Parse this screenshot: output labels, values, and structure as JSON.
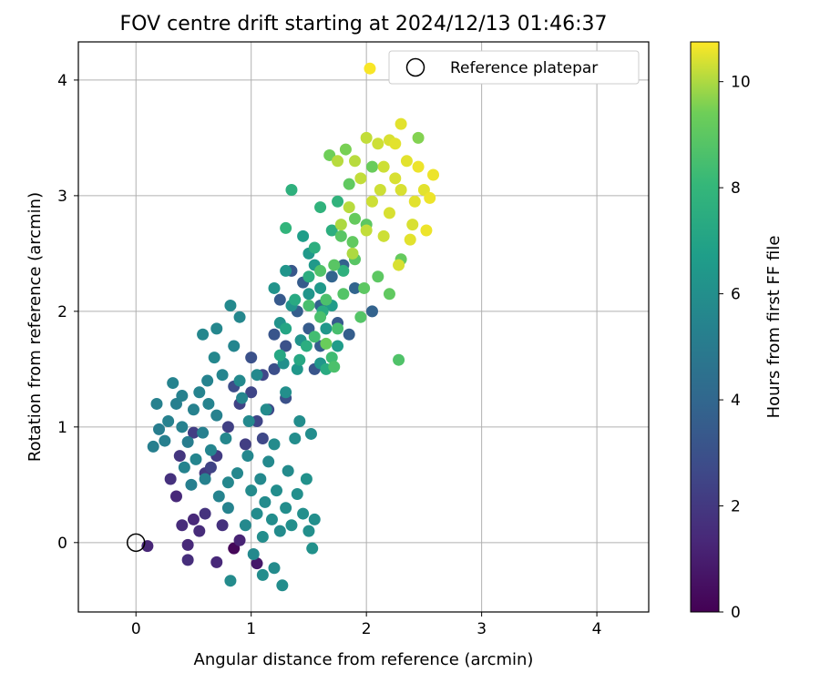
{
  "chart_data": {
    "type": "scatter",
    "title": "FOV centre drift starting at 2024/12/13 01:46:37",
    "xlabel": "Angular distance from reference (arcmin)",
    "ylabel": "Rotation from reference (arcmin)",
    "xlim": [
      -0.5,
      4.45
    ],
    "ylim": [
      -0.6,
      4.33
    ],
    "xticks": [
      0,
      1,
      2,
      3,
      4
    ],
    "yticks": [
      0,
      1,
      2,
      3,
      4
    ],
    "grid": true,
    "legend": {
      "placement": "top-right",
      "entries": [
        "Reference platepar"
      ]
    },
    "reference_point": {
      "x": 0,
      "y": 0,
      "label": "Reference platepar"
    },
    "colorbar": {
      "label": "Hours from first FF file",
      "colormap": "viridis",
      "range": [
        0,
        10.75
      ],
      "ticks": [
        0,
        2,
        4,
        6,
        8,
        10
      ]
    },
    "points": [
      {
        "x": 0.1,
        "y": -0.03,
        "c": 1.3
      },
      {
        "x": 0.35,
        "y": 0.4,
        "c": 1.4
      },
      {
        "x": 0.4,
        "y": 0.15,
        "c": 1.5
      },
      {
        "x": 0.45,
        "y": -0.15,
        "c": 1.6
      },
      {
        "x": 0.5,
        "y": 0.2,
        "c": 1.4
      },
      {
        "x": 0.55,
        "y": 0.1,
        "c": 1.5
      },
      {
        "x": 0.6,
        "y": 0.25,
        "c": 1.8
      },
      {
        "x": 0.7,
        "y": -0.17,
        "c": 1.4
      },
      {
        "x": 0.75,
        "y": 0.15,
        "c": 1.7
      },
      {
        "x": 0.85,
        "y": -0.05,
        "c": 0.2
      },
      {
        "x": 0.9,
        "y": 0.02,
        "c": 1.2
      },
      {
        "x": 1.05,
        "y": -0.18,
        "c": 0.8
      },
      {
        "x": 0.45,
        "y": -0.02,
        "c": 1.4
      },
      {
        "x": 0.3,
        "y": 0.55,
        "c": 1.7
      },
      {
        "x": 0.6,
        "y": 0.6,
        "c": 2.0
      },
      {
        "x": 0.38,
        "y": 0.75,
        "c": 1.9
      },
      {
        "x": 0.5,
        "y": 0.95,
        "c": 2.2
      },
      {
        "x": 0.8,
        "y": 1.0,
        "c": 2.3
      },
      {
        "x": 0.9,
        "y": 1.2,
        "c": 2.4
      },
      {
        "x": 1.0,
        "y": 1.3,
        "c": 2.5
      },
      {
        "x": 1.1,
        "y": 1.45,
        "c": 2.6
      },
      {
        "x": 0.95,
        "y": 0.85,
        "c": 2.2
      },
      {
        "x": 1.05,
        "y": 1.05,
        "c": 2.5
      },
      {
        "x": 1.15,
        "y": 1.15,
        "c": 2.7
      },
      {
        "x": 0.7,
        "y": 0.75,
        "c": 2.1
      },
      {
        "x": 0.85,
        "y": 1.35,
        "c": 2.8
      },
      {
        "x": 1.2,
        "y": 1.5,
        "c": 2.9
      },
      {
        "x": 1.3,
        "y": 1.7,
        "c": 3.0
      },
      {
        "x": 1.25,
        "y": 2.1,
        "c": 3.4
      },
      {
        "x": 1.4,
        "y": 2.0,
        "c": 3.6
      },
      {
        "x": 1.5,
        "y": 1.85,
        "c": 3.5
      },
      {
        "x": 1.6,
        "y": 2.05,
        "c": 3.8
      },
      {
        "x": 1.7,
        "y": 2.3,
        "c": 3.9
      },
      {
        "x": 1.8,
        "y": 2.4,
        "c": 3.7
      },
      {
        "x": 1.85,
        "y": 1.8,
        "c": 3.6
      },
      {
        "x": 2.05,
        "y": 2.0,
        "c": 3.8
      },
      {
        "x": 1.35,
        "y": 2.35,
        "c": 3.3
      },
      {
        "x": 1.45,
        "y": 2.25,
        "c": 3.5
      },
      {
        "x": 1.6,
        "y": 1.7,
        "c": 3.6
      },
      {
        "x": 1.9,
        "y": 2.2,
        "c": 3.9
      },
      {
        "x": 1.2,
        "y": 1.8,
        "c": 3.2
      },
      {
        "x": 1.0,
        "y": 1.6,
        "c": 3.0
      },
      {
        "x": 0.65,
        "y": 0.65,
        "c": 2.4
      },
      {
        "x": 1.1,
        "y": 0.9,
        "c": 2.6
      },
      {
        "x": 1.3,
        "y": 1.25,
        "c": 3.0
      },
      {
        "x": 1.55,
        "y": 1.5,
        "c": 3.2
      },
      {
        "x": 1.75,
        "y": 1.9,
        "c": 3.4
      },
      {
        "x": 0.15,
        "y": 0.83,
        "c": 5.2
      },
      {
        "x": 0.18,
        "y": 1.2,
        "c": 5.3
      },
      {
        "x": 0.2,
        "y": 0.98,
        "c": 5.1
      },
      {
        "x": 0.25,
        "y": 0.88,
        "c": 5.2
      },
      {
        "x": 0.28,
        "y": 1.05,
        "c": 5.3
      },
      {
        "x": 0.32,
        "y": 1.38,
        "c": 5.4
      },
      {
        "x": 0.35,
        "y": 1.2,
        "c": 5.2
      },
      {
        "x": 0.4,
        "y": 1.0,
        "c": 5.3
      },
      {
        "x": 0.42,
        "y": 0.65,
        "c": 5.4
      },
      {
        "x": 0.45,
        "y": 0.87,
        "c": 5.1
      },
      {
        "x": 0.48,
        "y": 0.5,
        "c": 5.2
      },
      {
        "x": 0.5,
        "y": 1.15,
        "c": 5.3
      },
      {
        "x": 0.52,
        "y": 0.72,
        "c": 5.5
      },
      {
        "x": 0.55,
        "y": 1.3,
        "c": 5.4
      },
      {
        "x": 0.58,
        "y": 0.95,
        "c": 5.2
      },
      {
        "x": 0.6,
        "y": 0.55,
        "c": 5.3
      },
      {
        "x": 0.62,
        "y": 1.4,
        "c": 5.4
      },
      {
        "x": 0.65,
        "y": 0.8,
        "c": 5.5
      },
      {
        "x": 0.68,
        "y": 1.6,
        "c": 5.6
      },
      {
        "x": 0.7,
        "y": 1.1,
        "c": 5.3
      },
      {
        "x": 0.72,
        "y": 0.4,
        "c": 5.4
      },
      {
        "x": 0.75,
        "y": 1.45,
        "c": 5.5
      },
      {
        "x": 0.78,
        "y": 0.9,
        "c": 5.6
      },
      {
        "x": 0.8,
        "y": 0.3,
        "c": 5.4
      },
      {
        "x": 0.82,
        "y": 2.05,
        "c": 5.7
      },
      {
        "x": 0.85,
        "y": 1.7,
        "c": 5.5
      },
      {
        "x": 0.88,
        "y": 0.6,
        "c": 5.6
      },
      {
        "x": 0.9,
        "y": 1.95,
        "c": 5.6
      },
      {
        "x": 0.92,
        "y": 1.25,
        "c": 5.5
      },
      {
        "x": 0.95,
        "y": 0.15,
        "c": 5.7
      },
      {
        "x": 0.97,
        "y": 0.75,
        "c": 5.6
      },
      {
        "x": 1.0,
        "y": 0.45,
        "c": 5.8
      },
      {
        "x": 1.02,
        "y": -0.1,
        "c": 5.7
      },
      {
        "x": 1.05,
        "y": 0.25,
        "c": 5.8
      },
      {
        "x": 1.08,
        "y": 0.55,
        "c": 5.7
      },
      {
        "x": 1.1,
        "y": 0.05,
        "c": 5.9
      },
      {
        "x": 1.12,
        "y": 0.35,
        "c": 5.8
      },
      {
        "x": 1.15,
        "y": 0.7,
        "c": 5.7
      },
      {
        "x": 1.18,
        "y": 0.2,
        "c": 5.9
      },
      {
        "x": 1.2,
        "y": -0.22,
        "c": 5.8
      },
      {
        "x": 1.22,
        "y": 0.45,
        "c": 5.9
      },
      {
        "x": 1.25,
        "y": 0.1,
        "c": 5.8
      },
      {
        "x": 1.27,
        "y": -0.37,
        "c": 5.9
      },
      {
        "x": 1.3,
        "y": 0.3,
        "c": 5.9
      },
      {
        "x": 1.32,
        "y": 0.62,
        "c": 5.8
      },
      {
        "x": 1.35,
        "y": 0.15,
        "c": 6.0
      },
      {
        "x": 1.38,
        "y": 0.9,
        "c": 5.9
      },
      {
        "x": 1.4,
        "y": 0.42,
        "c": 6.0
      },
      {
        "x": 1.42,
        "y": 1.05,
        "c": 5.9
      },
      {
        "x": 1.45,
        "y": 0.25,
        "c": 6.0
      },
      {
        "x": 1.48,
        "y": 0.55,
        "c": 6.1
      },
      {
        "x": 1.5,
        "y": 0.1,
        "c": 6.0
      },
      {
        "x": 1.53,
        "y": -0.05,
        "c": 6.1
      },
      {
        "x": 1.55,
        "y": 0.2,
        "c": 6.0
      },
      {
        "x": 1.52,
        "y": 0.94,
        "c": 5.9
      },
      {
        "x": 0.82,
        "y": -0.33,
        "c": 5.8
      },
      {
        "x": 1.1,
        "y": -0.28,
        "c": 5.9
      },
      {
        "x": 1.13,
        "y": 1.15,
        "c": 5.8
      },
      {
        "x": 1.3,
        "y": 1.3,
        "c": 6.0
      },
      {
        "x": 1.28,
        "y": 1.55,
        "c": 6.0
      },
      {
        "x": 1.05,
        "y": 1.45,
        "c": 5.7
      },
      {
        "x": 0.7,
        "y": 1.85,
        "c": 5.6
      },
      {
        "x": 0.58,
        "y": 1.8,
        "c": 5.6
      },
      {
        "x": 0.9,
        "y": 1.4,
        "c": 5.7
      },
      {
        "x": 1.2,
        "y": 0.85,
        "c": 5.8
      },
      {
        "x": 0.98,
        "y": 1.05,
        "c": 5.7
      },
      {
        "x": 0.4,
        "y": 1.27,
        "c": 5.3
      },
      {
        "x": 0.63,
        "y": 1.2,
        "c": 5.4
      },
      {
        "x": 0.8,
        "y": 0.52,
        "c": 5.6
      },
      {
        "x": 1.43,
        "y": 1.75,
        "c": 6.2
      },
      {
        "x": 1.35,
        "y": 2.05,
        "c": 6.2
      },
      {
        "x": 1.6,
        "y": 1.55,
        "c": 6.3
      },
      {
        "x": 1.25,
        "y": 1.9,
        "c": 6.2
      },
      {
        "x": 1.5,
        "y": 2.15,
        "c": 6.3
      },
      {
        "x": 1.65,
        "y": 1.85,
        "c": 6.4
      },
      {
        "x": 1.3,
        "y": 2.35,
        "c": 6.3
      },
      {
        "x": 1.55,
        "y": 2.4,
        "c": 6.5
      },
      {
        "x": 1.7,
        "y": 2.05,
        "c": 6.6
      },
      {
        "x": 1.4,
        "y": 1.5,
        "c": 6.4
      },
      {
        "x": 1.75,
        "y": 1.7,
        "c": 6.6
      },
      {
        "x": 1.5,
        "y": 2.5,
        "c": 6.5
      },
      {
        "x": 1.2,
        "y": 2.2,
        "c": 6.2
      },
      {
        "x": 1.45,
        "y": 2.65,
        "c": 6.7
      },
      {
        "x": 1.6,
        "y": 2.2,
        "c": 6.5
      },
      {
        "x": 1.42,
        "y": 1.58,
        "c": 7.2
      },
      {
        "x": 1.65,
        "y": 1.5,
        "c": 7.4
      },
      {
        "x": 1.3,
        "y": 1.85,
        "c": 7.1
      },
      {
        "x": 1.5,
        "y": 2.3,
        "c": 7.5
      },
      {
        "x": 1.7,
        "y": 2.7,
        "c": 7.6
      },
      {
        "x": 1.38,
        "y": 2.1,
        "c": 7.3
      },
      {
        "x": 1.55,
        "y": 2.55,
        "c": 7.6
      },
      {
        "x": 1.75,
        "y": 2.95,
        "c": 7.8
      },
      {
        "x": 1.35,
        "y": 3.05,
        "c": 7.7
      },
      {
        "x": 1.62,
        "y": 2.0,
        "c": 7.4
      },
      {
        "x": 1.8,
        "y": 2.35,
        "c": 7.7
      },
      {
        "x": 1.3,
        "y": 2.72,
        "c": 7.9
      },
      {
        "x": 1.48,
        "y": 1.7,
        "c": 7.5
      },
      {
        "x": 1.25,
        "y": 1.62,
        "c": 7.2
      },
      {
        "x": 1.6,
        "y": 2.9,
        "c": 7.8
      },
      {
        "x": 1.55,
        "y": 1.78,
        "c": 8.4
      },
      {
        "x": 1.65,
        "y": 2.1,
        "c": 8.6
      },
      {
        "x": 1.75,
        "y": 1.85,
        "c": 8.5
      },
      {
        "x": 1.8,
        "y": 2.15,
        "c": 8.8
      },
      {
        "x": 1.9,
        "y": 2.45,
        "c": 8.9
      },
      {
        "x": 1.7,
        "y": 1.6,
        "c": 8.3
      },
      {
        "x": 1.6,
        "y": 2.35,
        "c": 8.7
      },
      {
        "x": 2.0,
        "y": 2.75,
        "c": 9.0
      },
      {
        "x": 1.85,
        "y": 3.1,
        "c": 9.1
      },
      {
        "x": 1.95,
        "y": 1.95,
        "c": 8.8
      },
      {
        "x": 1.72,
        "y": 1.52,
        "c": 8.6
      },
      {
        "x": 1.5,
        "y": 2.05,
        "c": 8.5
      },
      {
        "x": 2.1,
        "y": 2.3,
        "c": 9.0
      },
      {
        "x": 1.78,
        "y": 2.65,
        "c": 8.9
      },
      {
        "x": 2.28,
        "y": 1.58,
        "c": 8.7
      },
      {
        "x": 1.9,
        "y": 2.8,
        "c": 9.2
      },
      {
        "x": 2.05,
        "y": 3.25,
        "c": 9.3
      },
      {
        "x": 1.98,
        "y": 2.2,
        "c": 9.0
      },
      {
        "x": 2.2,
        "y": 2.15,
        "c": 9.1
      },
      {
        "x": 1.68,
        "y": 3.35,
        "c": 9.4
      },
      {
        "x": 1.82,
        "y": 3.4,
        "c": 9.5
      },
      {
        "x": 1.6,
        "y": 1.95,
        "c": 8.6
      },
      {
        "x": 1.72,
        "y": 2.4,
        "c": 8.9
      },
      {
        "x": 1.88,
        "y": 2.6,
        "c": 9.1
      },
      {
        "x": 1.65,
        "y": 1.72,
        "c": 9.3
      },
      {
        "x": 2.3,
        "y": 2.45,
        "c": 9.2
      },
      {
        "x": 2.45,
        "y": 3.5,
        "c": 9.6
      },
      {
        "x": 2.0,
        "y": 3.5,
        "c": 10.2
      },
      {
        "x": 2.15,
        "y": 3.25,
        "c": 10.3
      },
      {
        "x": 2.3,
        "y": 3.05,
        "c": 10.4
      },
      {
        "x": 2.05,
        "y": 2.95,
        "c": 10.3
      },
      {
        "x": 1.95,
        "y": 3.15,
        "c": 10.2
      },
      {
        "x": 2.2,
        "y": 2.85,
        "c": 10.4
      },
      {
        "x": 2.35,
        "y": 3.3,
        "c": 10.5
      },
      {
        "x": 2.4,
        "y": 2.75,
        "c": 10.4
      },
      {
        "x": 2.5,
        "y": 3.05,
        "c": 10.5
      },
      {
        "x": 2.1,
        "y": 3.45,
        "c": 10.3
      },
      {
        "x": 2.25,
        "y": 3.15,
        "c": 10.4
      },
      {
        "x": 1.85,
        "y": 2.9,
        "c": 10.1
      },
      {
        "x": 2.0,
        "y": 2.7,
        "c": 10.2
      },
      {
        "x": 2.45,
        "y": 3.25,
        "c": 10.6
      },
      {
        "x": 2.3,
        "y": 3.62,
        "c": 10.5
      },
      {
        "x": 2.58,
        "y": 3.18,
        "c": 10.6
      },
      {
        "x": 2.55,
        "y": 2.98,
        "c": 10.6
      },
      {
        "x": 2.03,
        "y": 4.1,
        "c": 10.7
      },
      {
        "x": 2.15,
        "y": 2.65,
        "c": 10.3
      },
      {
        "x": 2.28,
        "y": 2.4,
        "c": 10.4
      },
      {
        "x": 2.38,
        "y": 2.62,
        "c": 10.5
      },
      {
        "x": 1.9,
        "y": 3.3,
        "c": 10.1
      },
      {
        "x": 2.12,
        "y": 3.05,
        "c": 10.3
      },
      {
        "x": 2.42,
        "y": 2.95,
        "c": 10.5
      },
      {
        "x": 1.78,
        "y": 2.75,
        "c": 10.0
      },
      {
        "x": 2.25,
        "y": 3.45,
        "c": 10.5
      },
      {
        "x": 2.52,
        "y": 2.7,
        "c": 10.6
      },
      {
        "x": 1.75,
        "y": 3.3,
        "c": 10.1
      },
      {
        "x": 1.88,
        "y": 2.5,
        "c": 10.0
      },
      {
        "x": 2.2,
        "y": 3.48,
        "c": 10.4
      }
    ]
  }
}
